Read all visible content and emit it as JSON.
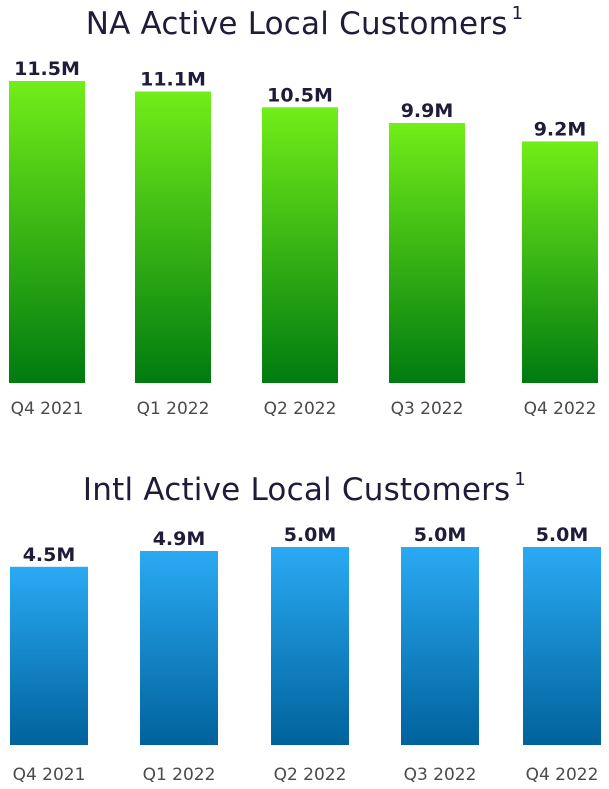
{
  "chart_data": [
    {
      "type": "bar",
      "title": "NA Active Local Customers",
      "title_superscript": "1",
      "categories": [
        "Q4 2021",
        "Q1 2022",
        "Q2 2022",
        "Q3 2022",
        "Q4 2022"
      ],
      "values": [
        11.5,
        11.1,
        10.5,
        9.9,
        9.2
      ],
      "value_labels": [
        "11.5M",
        "11.1M",
        "10.5M",
        "9.9M",
        "9.2M"
      ],
      "unit": "M",
      "ylim": [
        0,
        11.5
      ],
      "grid": false,
      "colors": {
        "top": "#72ee19",
        "bottom": "#007b10"
      }
    },
    {
      "type": "bar",
      "title": "Intl Active Local Customers",
      "title_superscript": "1",
      "categories": [
        "Q4 2021",
        "Q1 2022",
        "Q2 2022",
        "Q3 2022",
        "Q4 2022"
      ],
      "values": [
        4.5,
        4.9,
        5.0,
        5.0,
        5.0
      ],
      "value_labels": [
        "4.5M",
        "4.9M",
        "5.0M",
        "5.0M",
        "5.0M"
      ],
      "unit": "M",
      "ylim": [
        0,
        5.0
      ],
      "grid": false,
      "colors": {
        "top": "#2aaaf4",
        "bottom": "#00629c"
      }
    }
  ]
}
